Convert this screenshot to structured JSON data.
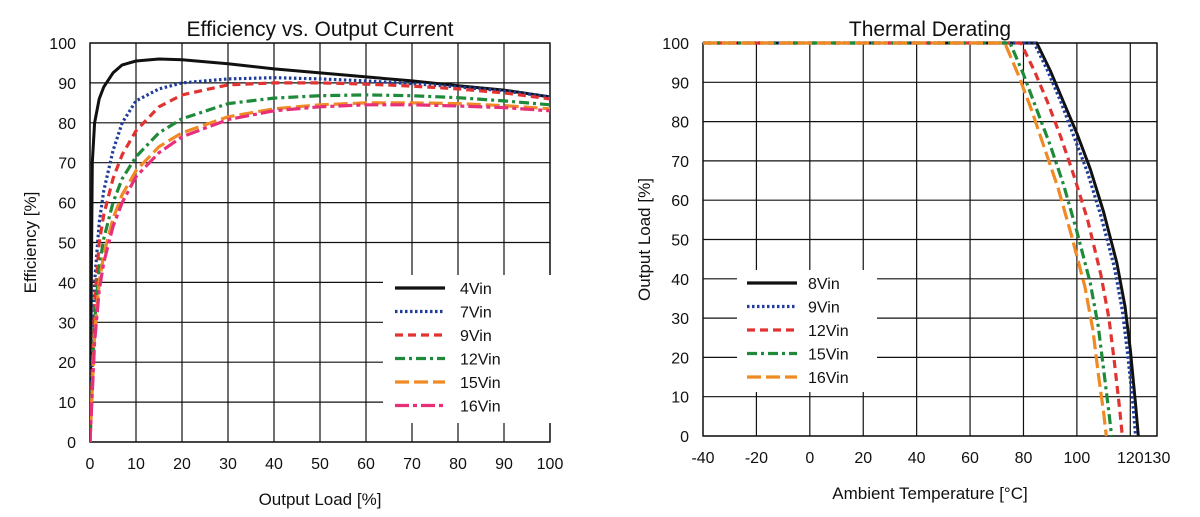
{
  "chart_data": [
    {
      "type": "line",
      "title": "Efficiency vs. Output Current",
      "xlabel": "Output Load [%]",
      "ylabel": "Efficiency [%]",
      "xlim": [
        0,
        100
      ],
      "ylim": [
        0,
        100
      ],
      "xticks": [
        0,
        10,
        20,
        30,
        40,
        50,
        60,
        70,
        80,
        90,
        100
      ],
      "yticks": [
        0,
        10,
        20,
        30,
        40,
        50,
        60,
        70,
        80,
        90,
        100
      ],
      "grid": true,
      "legend_position": "lower-right",
      "series": [
        {
          "name": "4Vin",
          "color": "#111111",
          "dash": "solid",
          "x": [
            0,
            0.5,
            1,
            2,
            3,
            5,
            7,
            10,
            15,
            20,
            30,
            40,
            50,
            60,
            70,
            80,
            90,
            100
          ],
          "y": [
            0,
            70,
            80,
            86,
            89,
            92.5,
            94.5,
            95.5,
            96,
            95.8,
            94.8,
            93.5,
            92.5,
            91.5,
            90.5,
            89.3,
            88.2,
            86.5
          ]
        },
        {
          "name": "7Vin",
          "color": "#1f3d99",
          "dash": "dotted",
          "x": [
            0,
            1,
            2,
            3,
            5,
            7,
            10,
            15,
            20,
            30,
            40,
            50,
            60,
            70,
            80,
            90,
            100
          ],
          "y": [
            0,
            40,
            55,
            63,
            73,
            80,
            85.5,
            88.5,
            90,
            91,
            91.3,
            91,
            90.5,
            89.8,
            89,
            88,
            86.5
          ]
        },
        {
          "name": "9Vin",
          "color": "#e23333",
          "dash": "dashed",
          "x": [
            0,
            1,
            2,
            3,
            5,
            7,
            10,
            15,
            20,
            30,
            40,
            50,
            60,
            70,
            80,
            90,
            100
          ],
          "y": [
            0,
            35,
            50,
            57,
            66,
            72,
            78,
            84,
            87,
            89.5,
            90,
            90,
            89.7,
            89.2,
            88.5,
            87.5,
            86
          ]
        },
        {
          "name": "12Vin",
          "color": "#1e8a3a",
          "dash": "dashdot",
          "x": [
            0,
            1,
            2,
            3,
            5,
            7,
            10,
            15,
            20,
            30,
            40,
            50,
            60,
            70,
            80,
            90,
            100
          ],
          "y": [
            0,
            30,
            44,
            51,
            60,
            66,
            71.5,
            77.5,
            81,
            84.8,
            86.2,
            86.8,
            87,
            86.8,
            86.3,
            85.5,
            84.5
          ]
        },
        {
          "name": "15Vin",
          "color": "#f08a24",
          "dash": "longdash",
          "x": [
            0,
            1,
            2,
            3,
            5,
            7,
            10,
            15,
            20,
            30,
            40,
            50,
            60,
            70,
            80,
            90,
            100
          ],
          "y": [
            0,
            27,
            40,
            47,
            56,
            62,
            68,
            74,
            77.5,
            81.5,
            83.5,
            84.5,
            85,
            85,
            84.8,
            84.3,
            83.5
          ]
        },
        {
          "name": "16Vin",
          "color": "#e8307a",
          "dash": "longdashdot",
          "x": [
            0,
            1,
            2,
            3,
            5,
            7,
            10,
            15,
            20,
            30,
            40,
            50,
            60,
            70,
            80,
            90,
            100
          ],
          "y": [
            0,
            25,
            38,
            45,
            54,
            60,
            66.5,
            72.5,
            76.5,
            80.8,
            83,
            84,
            84.5,
            84.5,
            84.2,
            83.8,
            83
          ]
        }
      ]
    },
    {
      "type": "line",
      "title": "Thermal Derating",
      "xlabel": "Ambient Temperature [°C]",
      "ylabel": "Output Load [%]",
      "xlim": [
        -40,
        130
      ],
      "ylim": [
        0,
        100
      ],
      "xticks": [
        -40,
        -20,
        0,
        20,
        40,
        60,
        80,
        100,
        120,
        130
      ],
      "yticks": [
        0,
        10,
        20,
        30,
        40,
        50,
        60,
        70,
        80,
        90,
        100
      ],
      "grid": true,
      "legend_position": "lower-left",
      "series": [
        {
          "name": "8Vin",
          "color": "#111111",
          "dash": "solid",
          "x": [
            -40,
            85,
            90,
            95,
            100,
            105,
            110,
            115,
            118,
            120,
            122,
            123
          ],
          "y": [
            100,
            100,
            93,
            85,
            77,
            68,
            57,
            44,
            33,
            22,
            8,
            0
          ]
        },
        {
          "name": "9Vin",
          "color": "#1f3d99",
          "dash": "dotted",
          "x": [
            -40,
            84,
            89,
            94,
            99,
            104,
            109,
            114,
            117,
            119,
            121,
            122
          ],
          "y": [
            100,
            100,
            93,
            85,
            76,
            67,
            56,
            43,
            32,
            21,
            8,
            0
          ]
        },
        {
          "name": "12Vin",
          "color": "#e23333",
          "dash": "dashed",
          "x": [
            -40,
            79,
            84,
            89,
            94,
            99,
            104,
            109,
            112,
            114,
            116,
            117
          ],
          "y": [
            100,
            100,
            93,
            85,
            76,
            66,
            55,
            41,
            30,
            19,
            7,
            0
          ]
        },
        {
          "name": "15Vin",
          "color": "#1e8a3a",
          "dash": "dashdot",
          "x": [
            -40,
            75,
            80,
            85,
            90,
            95,
            100,
            105,
            108,
            110,
            112,
            113
          ],
          "y": [
            100,
            100,
            92,
            83,
            74,
            64,
            52,
            39,
            28,
            17,
            6,
            0
          ]
        },
        {
          "name": "16Vin",
          "color": "#f08a24",
          "dash": "longdash",
          "x": [
            -40,
            73,
            78,
            83,
            88,
            93,
            98,
            103,
            106,
            108,
            110,
            111
          ],
          "y": [
            100,
            100,
            92,
            83,
            73,
            63,
            51,
            38,
            27,
            16,
            6,
            0
          ]
        }
      ]
    }
  ]
}
